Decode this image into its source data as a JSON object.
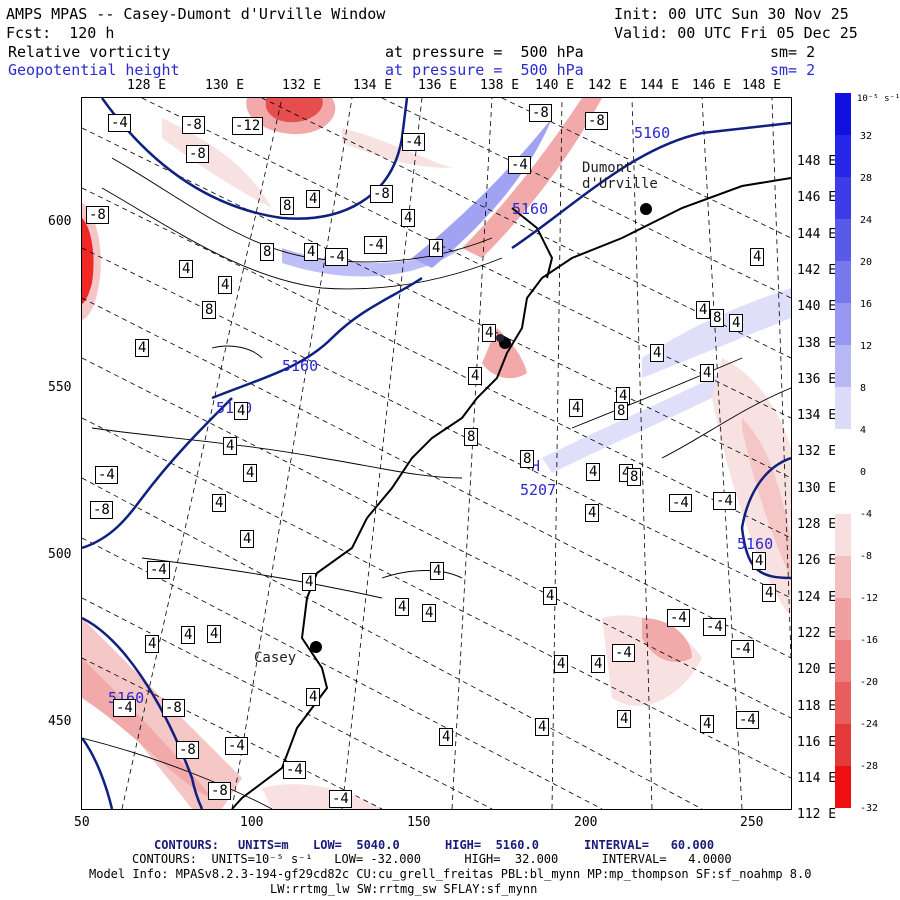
{
  "header": {
    "model_title": "AMPS MPAS -- Casey-Dumont d'Urville Window",
    "init": "Init: 00 UTC Sun 30 Nov 25",
    "forecast_hour": "Fcst:  120 h",
    "valid": "Valid: 00 UTC Fri 05 Dec 25"
  },
  "fields": [
    {
      "name": "Relative vorticity",
      "pressure_label": "at pressure =  500 hPa",
      "smoothing": "sm= 2",
      "color": "#000000"
    },
    {
      "name": "Geopotential height",
      "pressure_label": "at pressure =  500 hPa",
      "smoothing": "sm= 2",
      "color": "#2a2ad0"
    }
  ],
  "top_longitudes": [
    "128 E",
    "130 E",
    "132 E",
    "134 E",
    "136 E",
    "138 E",
    "140 E",
    "142 E",
    "144 E",
    "146 E",
    "148 E"
  ],
  "right_longitudes": [
    "148 E",
    "146 E",
    "144 E",
    "142 E",
    "140 E",
    "138 E",
    "136 E",
    "134 E",
    "132 E",
    "130 E",
    "128 E",
    "126 E",
    "124 E",
    "122 E",
    "120 E",
    "118 E",
    "116 E",
    "114 E",
    "112 E"
  ],
  "x_ticks": [
    "50",
    "100",
    "150",
    "200",
    "250"
  ],
  "y_ticks": [
    "600",
    "550",
    "500",
    "450"
  ],
  "stations": [
    {
      "name": "Dumont\nd'Urville"
    },
    {
      "name": "Casey"
    }
  ],
  "height_labels": [
    "5160",
    "5160",
    "5160",
    "5160",
    "5160",
    "5160",
    "5160"
  ],
  "high_marker": {
    "symbol": "H",
    "value": "5207"
  },
  "vorticity_labels": [
    "4",
    "8",
    "-4",
    "-8",
    "-12"
  ],
  "colorbar": {
    "unit": "10⁻⁵ s⁻¹",
    "ticks": [
      "32",
      "28",
      "24",
      "20",
      "16",
      "12",
      "8",
      "4",
      "0",
      "-4",
      "-8",
      "-12",
      "-16",
      "-20",
      "-24",
      "-28",
      "-32"
    ],
    "colors": [
      "#1010e0",
      "#2626e8",
      "#3d3de8",
      "#5a5aea",
      "#7878ee",
      "#9898f2",
      "#b8b8f6",
      "#dcdcfa",
      "#ffffff",
      "#ffffff",
      "#f8dede",
      "#f4c0c0",
      "#f0a0a0",
      "#ec8080",
      "#e85e5e",
      "#e43a3a",
      "#ee1010"
    ]
  },
  "footer": {
    "contours1_title": "CONTOURS:",
    "contours1_units": "UNITS=m",
    "contours1_low": "LOW=  5040.0",
    "contours1_high": "HIGH=  5160.0",
    "contours1_interval": "INTERVAL=   60.000",
    "contours2": "CONTOURS:  UNITS=10⁻⁵ s⁻¹   LOW= -32.000      HIGH=  32.000      INTERVAL=   4.0000",
    "model_info": "Model Info: MPASv8.2.3-194-gf29cd82c CU:cu_grell_freitas PBL:bl_mynn MP:mp_thompson SF:sf_noahmp 8.0",
    "model_info2": "LW:rrtmg_lw SW:rrtmg_sw SFLAY:sf_mynn"
  }
}
